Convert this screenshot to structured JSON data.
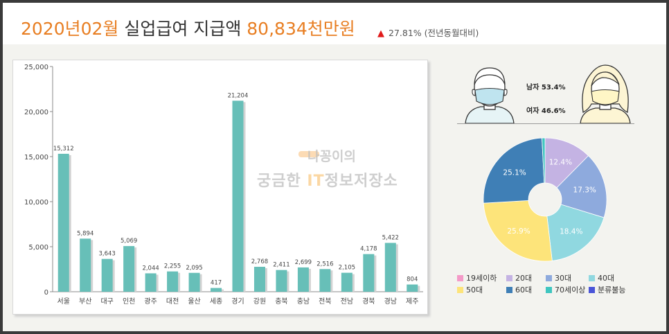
{
  "header": {
    "title_prefix": "2020년02월",
    "title_mid": " 실업급여 지급액 ",
    "title_amount": "80,834천만원",
    "change_icon": "triangle-up-icon",
    "change_text": "27.81% (전년동월대비)"
  },
  "watermark": {
    "line1": "나꽁이의",
    "line2_a": "궁금한 ",
    "line2_it": "IT",
    "line2_b": "정보저장소"
  },
  "gender": {
    "male_label": "남자 53.4%",
    "female_label": "여자 46.6%",
    "male_icon": "male-face-mask-icon",
    "female_icon": "female-face-mask-icon"
  },
  "colors": {
    "bar": "#67bfb8",
    "title_highlight": "#e87e22",
    "up_arrow": "#e01b1b"
  },
  "chart_data": [
    {
      "type": "bar",
      "categories": [
        "서울",
        "부산",
        "대구",
        "인천",
        "광주",
        "대전",
        "울산",
        "세종",
        "경기",
        "강원",
        "충북",
        "충남",
        "전북",
        "전남",
        "경북",
        "경남",
        "제주"
      ],
      "values": [
        15312,
        5894,
        3643,
        5069,
        2044,
        2255,
        2095,
        417,
        21204,
        2768,
        2411,
        2699,
        2516,
        2105,
        4178,
        5422,
        804
      ],
      "value_labels": [
        "15,312",
        "5,894",
        "3,643",
        "5,069",
        "2,044",
        "2,255",
        "2,095",
        "417",
        "21,204",
        "2,768",
        "2,411",
        "2,699",
        "2,516",
        "2,105",
        "4,178",
        "5,422",
        "804"
      ],
      "yticks": [
        "0",
        "5,000",
        "10,000",
        "15,000",
        "20,000",
        "25,000"
      ],
      "ylim": [
        0,
        25000
      ],
      "grid": false
    },
    {
      "type": "pie",
      "donut": true,
      "categories": [
        "19세이하",
        "20대",
        "30대",
        "40대",
        "50대",
        "60대",
        "70세이상",
        "분류불능"
      ],
      "values": [
        0,
        12.4,
        17.3,
        18.4,
        25.9,
        25.1,
        0.8,
        0
      ],
      "slice_labels": [
        "",
        "12.4%",
        "17.3%",
        "18.4%",
        "25.9%",
        "25.1%",
        "",
        ""
      ],
      "colors": [
        "#f49ac8",
        "#c4b3e3",
        "#8eaadd",
        "#90d8e0",
        "#fde47a",
        "#3f7fb6",
        "#3fc6c0",
        "#4a55d8"
      ],
      "legend_position": "bottom"
    }
  ]
}
